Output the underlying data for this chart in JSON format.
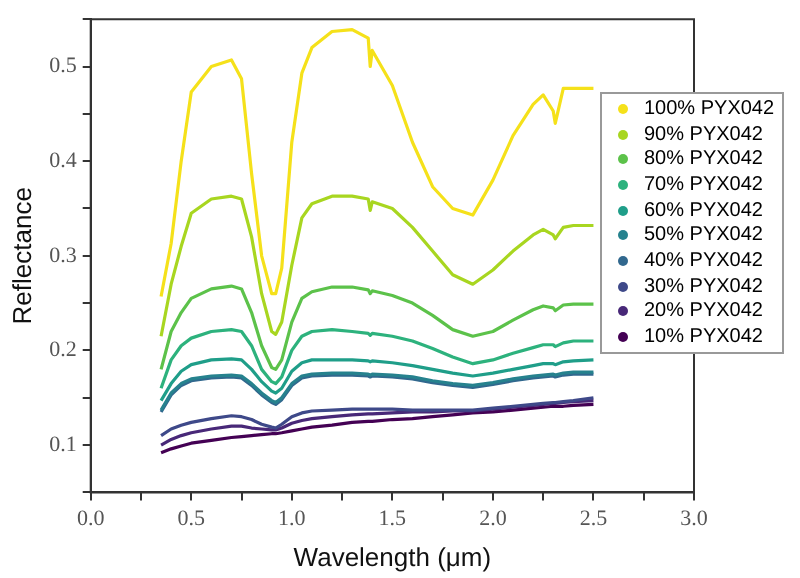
{
  "chart_data": {
    "type": "line",
    "xlabel": "Wavelength (μm)",
    "ylabel": "Reflectance",
    "x": [
      0.35,
      0.4,
      0.45,
      0.5,
      0.6,
      0.7,
      0.75,
      0.8,
      0.85,
      0.9,
      0.92,
      0.95,
      1.0,
      1.05,
      1.1,
      1.2,
      1.3,
      1.38,
      1.39,
      1.4,
      1.5,
      1.6,
      1.7,
      1.8,
      1.9,
      2.0,
      2.1,
      2.2,
      2.25,
      2.3,
      2.31,
      2.35,
      2.4,
      2.5
    ],
    "series": [
      {
        "name": "100% PYX042",
        "color": "#f5e11a",
        "values": [
          0.257,
          0.313,
          0.4,
          0.473,
          0.5,
          0.507,
          0.487,
          0.387,
          0.3,
          0.26,
          0.26,
          0.287,
          0.42,
          0.493,
          0.52,
          0.537,
          0.539,
          0.53,
          0.5,
          0.517,
          0.48,
          0.42,
          0.373,
          0.35,
          0.343,
          0.38,
          0.427,
          0.46,
          0.47,
          0.453,
          0.44,
          0.477,
          0.477,
          0.477
        ]
      },
      {
        "name": "90% PYX042",
        "color": "#a8d620",
        "values": [
          0.215,
          0.27,
          0.31,
          0.345,
          0.36,
          0.363,
          0.36,
          0.32,
          0.26,
          0.22,
          0.217,
          0.23,
          0.29,
          0.34,
          0.355,
          0.363,
          0.363,
          0.36,
          0.348,
          0.357,
          0.35,
          0.33,
          0.305,
          0.28,
          0.27,
          0.285,
          0.305,
          0.322,
          0.328,
          0.322,
          0.318,
          0.33,
          0.332,
          0.332
        ]
      },
      {
        "name": "80% PYX042",
        "color": "#5cc24a",
        "values": [
          0.18,
          0.22,
          0.24,
          0.255,
          0.265,
          0.268,
          0.265,
          0.24,
          0.205,
          0.182,
          0.18,
          0.19,
          0.23,
          0.255,
          0.262,
          0.267,
          0.267,
          0.264,
          0.26,
          0.263,
          0.258,
          0.25,
          0.237,
          0.222,
          0.215,
          0.22,
          0.232,
          0.243,
          0.247,
          0.245,
          0.242,
          0.248,
          0.249,
          0.249
        ]
      },
      {
        "name": "70% PYX042",
        "color": "#2db27d",
        "values": [
          0.16,
          0.19,
          0.205,
          0.213,
          0.22,
          0.222,
          0.22,
          0.205,
          0.18,
          0.167,
          0.165,
          0.172,
          0.2,
          0.215,
          0.22,
          0.222,
          0.22,
          0.218,
          0.216,
          0.218,
          0.215,
          0.21,
          0.202,
          0.193,
          0.186,
          0.19,
          0.197,
          0.203,
          0.206,
          0.206,
          0.204,
          0.208,
          0.21,
          0.21
        ]
      },
      {
        "name": "60% PYX042",
        "color": "#1f9e89",
        "values": [
          0.147,
          0.165,
          0.178,
          0.185,
          0.19,
          0.191,
          0.19,
          0.18,
          0.167,
          0.157,
          0.155,
          0.16,
          0.178,
          0.187,
          0.19,
          0.19,
          0.19,
          0.189,
          0.188,
          0.189,
          0.187,
          0.184,
          0.18,
          0.176,
          0.173,
          0.176,
          0.18,
          0.184,
          0.186,
          0.186,
          0.185,
          0.188,
          0.189,
          0.19
        ]
      },
      {
        "name": "50% PYX042",
        "color": "#26828e",
        "values": [
          0.137,
          0.155,
          0.165,
          0.17,
          0.173,
          0.174,
          0.173,
          0.165,
          0.155,
          0.147,
          0.145,
          0.15,
          0.165,
          0.173,
          0.175,
          0.176,
          0.176,
          0.175,
          0.174,
          0.175,
          0.174,
          0.172,
          0.168,
          0.165,
          0.163,
          0.166,
          0.17,
          0.173,
          0.174,
          0.175,
          0.174,
          0.176,
          0.177,
          0.177
        ]
      },
      {
        "name": "40% PYX042",
        "color": "#31688e",
        "values": [
          0.135,
          0.153,
          0.163,
          0.168,
          0.171,
          0.172,
          0.171,
          0.163,
          0.153,
          0.145,
          0.143,
          0.148,
          0.163,
          0.171,
          0.173,
          0.174,
          0.174,
          0.173,
          0.172,
          0.173,
          0.172,
          0.17,
          0.166,
          0.163,
          0.161,
          0.164,
          0.168,
          0.171,
          0.172,
          0.173,
          0.172,
          0.174,
          0.175,
          0.175
        ]
      },
      {
        "name": "30% PYX042",
        "color": "#3e4989",
        "values": [
          0.11,
          0.117,
          0.121,
          0.124,
          0.128,
          0.131,
          0.13,
          0.127,
          0.122,
          0.119,
          0.118,
          0.122,
          0.13,
          0.134,
          0.136,
          0.137,
          0.138,
          0.138,
          0.138,
          0.138,
          0.138,
          0.137,
          0.137,
          0.137,
          0.137,
          0.139,
          0.141,
          0.143,
          0.144,
          0.145,
          0.145,
          0.146,
          0.147,
          0.15
        ]
      },
      {
        "name": "20% PYX042",
        "color": "#482878",
        "values": [
          0.1,
          0.106,
          0.11,
          0.113,
          0.117,
          0.12,
          0.12,
          0.118,
          0.117,
          0.116,
          0.116,
          0.118,
          0.123,
          0.126,
          0.128,
          0.13,
          0.132,
          0.133,
          0.133,
          0.133,
          0.134,
          0.135,
          0.135,
          0.136,
          0.136,
          0.138,
          0.14,
          0.142,
          0.143,
          0.144,
          0.144,
          0.145,
          0.146,
          0.147
        ]
      },
      {
        "name": "10% PYX042",
        "color": "#440154",
        "values": [
          0.092,
          0.096,
          0.099,
          0.102,
          0.105,
          0.108,
          0.109,
          0.11,
          0.111,
          0.112,
          0.112,
          0.113,
          0.115,
          0.117,
          0.119,
          0.121,
          0.124,
          0.125,
          0.125,
          0.125,
          0.127,
          0.128,
          0.13,
          0.132,
          0.134,
          0.135,
          0.137,
          0.139,
          0.14,
          0.141,
          0.141,
          0.141,
          0.142,
          0.143
        ]
      }
    ],
    "xlim": [
      0,
      3
    ],
    "ylim": [
      0.05,
      0.55
    ],
    "xticks": [
      {
        "value": 0,
        "label": "0.0"
      },
      {
        "value": 0.25,
        "label": null
      },
      0.5,
      {
        "value": 0.75,
        "label": null
      },
      {
        "value": 1,
        "label": "1.0"
      },
      {
        "value": 1.25,
        "label": null
      },
      1.5,
      {
        "value": 1.75,
        "label": null
      },
      {
        "value": 2,
        "label": "2.0"
      },
      {
        "value": 2.25,
        "label": null
      },
      2.5,
      {
        "value": 2.75,
        "label": null
      },
      {
        "value": 3,
        "label": "3.0"
      }
    ],
    "yticks": [
      {
        "value": 0.05,
        "label": null
      },
      0.1,
      {
        "value": 0.15,
        "label": null
      },
      0.2,
      {
        "value": 0.25,
        "label": null
      },
      0.3,
      {
        "value": 0.35,
        "label": null
      },
      0.4,
      {
        "value": 0.45,
        "label": null
      },
      0.5,
      {
        "value": 0.55,
        "label": null
      }
    ],
    "grid": false,
    "legend": "right",
    "marker": "none",
    "line_style": "solid"
  }
}
